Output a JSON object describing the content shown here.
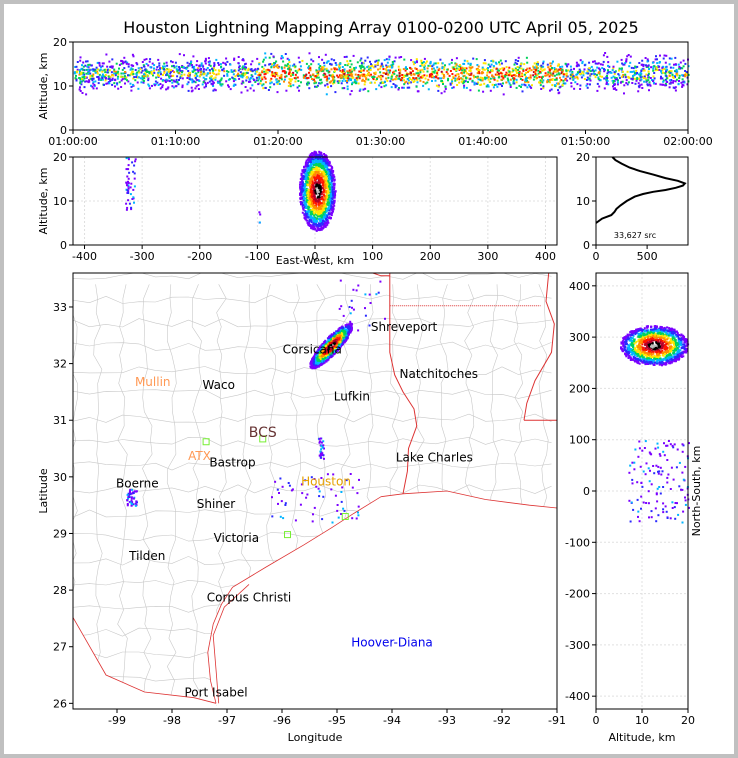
{
  "title": "Houston Lightning Mapping Array 0100-0200 UTC April 05, 2025",
  "colors": {
    "density_scale": [
      "#7a00ff",
      "#2a2aff",
      "#00b4ff",
      "#00d25a",
      "#ffe600",
      "#ff8c00",
      "#ff1400",
      "#b4002a",
      "#000000",
      "#bebebe",
      "#ffffff"
    ],
    "state_border": "#dd3333",
    "coastline": "#dd3333",
    "county_lines": "#c8c8c8",
    "grid": "#e0e0e0",
    "city_label": "#000000",
    "radar_site_label": "#ff9955",
    "houston_label": "#e6a000",
    "tower_label": "#0000ee",
    "station_marker": "#77ee33"
  },
  "chart_data": [
    {
      "panel": "time-altitude",
      "type": "scatter",
      "xlabel": "",
      "ylabel": "Altitude, km",
      "xlim": [
        "01:00:00",
        "02:00:00"
      ],
      "ylim": [
        0,
        20
      ],
      "xticks": [
        "01:00:00",
        "01:10:00",
        "01:20:00",
        "01:30:00",
        "01:40:00",
        "01:50:00",
        "02:00:00"
      ],
      "yticks": [
        0,
        10,
        20
      ],
      "source_altitude_km": {
        "min": 4,
        "max": 20,
        "peak_density": 13
      }
    },
    {
      "panel": "east-west-altitude",
      "type": "scatter",
      "xlabel": "East-West, km",
      "ylabel": "Altitude, km",
      "xlim": [
        -420,
        420
      ],
      "ylim": [
        0,
        20
      ],
      "xticks": [
        -400,
        -300,
        -200,
        -100,
        0,
        100,
        200,
        300,
        400
      ],
      "yticks": [
        0,
        10,
        20
      ],
      "clusters": [
        {
          "ew_km": [
            -330,
            -310
          ],
          "alt_km": [
            8,
            20
          ],
          "density": "low"
        },
        {
          "ew_km": [
            -10,
            45
          ],
          "alt_km": [
            4,
            20
          ],
          "density": "very high"
        },
        {
          "ew_km": [
            -100,
            -95
          ],
          "alt_km": [
            5,
            8
          ],
          "density": "sparse"
        }
      ]
    },
    {
      "panel": "altitude-histogram",
      "type": "line",
      "xlim": [
        0,
        900
      ],
      "ylim": [
        0,
        20
      ],
      "xticks": [
        0,
        500
      ],
      "yticks": [
        0,
        10,
        20
      ],
      "annotation": "33,627 src",
      "x": [
        0,
        60,
        150,
        180,
        200,
        240,
        300,
        380,
        460,
        560,
        680,
        780,
        850,
        870,
        800,
        680,
        560,
        430,
        330,
        250,
        190,
        160
      ],
      "y": [
        5,
        6,
        6.8,
        7.5,
        8.2,
        9,
        10,
        11,
        11.6,
        12.1,
        12.5,
        13,
        13.5,
        14,
        14.6,
        15.2,
        16,
        16.8,
        17.6,
        18.5,
        19.3,
        20
      ]
    },
    {
      "panel": "plan-view",
      "type": "scatter",
      "xlabel": "Longitude",
      "ylabel": "Latitude",
      "xlim": [
        -99.8,
        -91
      ],
      "ylim": [
        25.9,
        33.6
      ],
      "xticks": [
        -99,
        -98,
        -97,
        -96,
        -95,
        -94,
        -93,
        -92,
        -91
      ],
      "yticks": [
        26,
        27,
        28,
        29,
        30,
        31,
        32,
        33
      ],
      "clusters": [
        {
          "lon": [
            -95.4,
            -94.8
          ],
          "lat": [
            32.0,
            32.8
          ],
          "density": "very high"
        },
        {
          "lon": [
            -98.85,
            -98.65
          ],
          "lat": [
            29.5,
            29.8
          ],
          "density": "moderate"
        },
        {
          "lon": [
            -95.35,
            -95.25
          ],
          "lat": [
            30.3,
            30.7
          ],
          "density": "moderate"
        },
        {
          "lon": [
            -96.2,
            -94.6
          ],
          "lat": [
            29.2,
            30.1
          ],
          "density": "sparse"
        },
        {
          "lon": [
            -95.0,
            -94.1
          ],
          "lat": [
            32.6,
            33.5
          ],
          "density": "sparse"
        }
      ],
      "city_labels": [
        {
          "text": "Shreveport",
          "lon": -93.78,
          "lat": 32.58
        },
        {
          "text": "Corsicana",
          "lon": -95.45,
          "lat": 32.18
        },
        {
          "text": "Natchitoches",
          "lon": -93.15,
          "lat": 31.75
        },
        {
          "text": "Waco",
          "lon": -97.15,
          "lat": 31.55
        },
        {
          "text": "Lufkin",
          "lon": -94.73,
          "lat": 31.35
        },
        {
          "text": "Bastrop",
          "lon": -96.9,
          "lat": 30.18
        },
        {
          "text": "Lake Charles",
          "lon": -93.23,
          "lat": 30.27
        },
        {
          "text": "Boerne",
          "lon": -98.63,
          "lat": 29.81
        },
        {
          "text": "Shiner",
          "lon": -97.2,
          "lat": 29.45
        },
        {
          "text": "Victoria",
          "lon": -96.83,
          "lat": 28.85
        },
        {
          "text": "Tilden",
          "lon": -98.45,
          "lat": 28.53
        },
        {
          "text": "Corpus Christi",
          "lon": -96.6,
          "lat": 27.8
        },
        {
          "text": "Port Isabel",
          "lon": -97.2,
          "lat": 26.12
        }
      ],
      "radar_labels": [
        {
          "text": "Mullin",
          "lon": -98.35,
          "lat": 31.6
        },
        {
          "text": "ATX",
          "lon": -97.5,
          "lat": 30.3
        },
        {
          "text": "BCS",
          "lon": -96.35,
          "lat": 30.7
        }
      ],
      "houston_label": {
        "text": "Houston",
        "lon": -95.2,
        "lat": 29.85
      },
      "tower_label": {
        "text": "Hoover-Diana",
        "lon": -94.0,
        "lat": 27.0
      },
      "stations": [
        {
          "lon": -97.38,
          "lat": 30.62
        },
        {
          "lon": -96.35,
          "lat": 30.67
        },
        {
          "lon": -95.9,
          "lat": 28.98
        },
        {
          "lon": -94.85,
          "lat": 29.3
        }
      ]
    },
    {
      "panel": "north-south-altitude",
      "type": "scatter",
      "xlabel": "Altitude, km",
      "ylabel": "North-South, km",
      "xlim": [
        0,
        20
      ],
      "ylim": [
        -425,
        425
      ],
      "xticks": [
        0,
        10,
        20
      ],
      "yticks": [
        -400,
        -300,
        -200,
        -100,
        0,
        100,
        200,
        300,
        400
      ],
      "clusters": [
        {
          "alt_km": [
            4,
            20
          ],
          "ns_km": [
            240,
            330
          ],
          "density": "very high"
        },
        {
          "alt_km": [
            5,
            20
          ],
          "ns_km": [
            -60,
            100
          ],
          "density": "sparse"
        }
      ]
    }
  ]
}
